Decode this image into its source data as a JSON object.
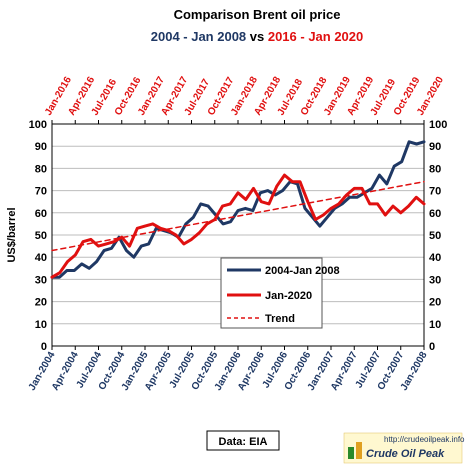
{
  "chart_data": {
    "type": "line",
    "title": "Comparison  Brent oil price",
    "subtitle_part1": "2004 - Jan 2008",
    "subtitle_part2": " vs ",
    "subtitle_part3": "2016 - Jan 2020",
    "ylabel": "US$/barrel",
    "ylim": [
      0,
      100
    ],
    "yticks": [
      0,
      10,
      20,
      30,
      40,
      50,
      60,
      70,
      80,
      90,
      100
    ],
    "grid": true,
    "x_bottom_ticks": [
      "Jan-2004",
      "Apr-2004",
      "Jul-2004",
      "Oct-2004",
      "Jan-2005",
      "Apr-2005",
      "Jul-2005",
      "Oct-2005",
      "Jan-2006",
      "Apr-2006",
      "Jul-2006",
      "Oct-2006",
      "Jan-2007",
      "Apr-2007",
      "Jul-2007",
      "Oct-2007",
      "Jan-2008"
    ],
    "x_top_ticks": [
      "Jan-2016",
      "Apr-2016",
      "Jul-2016",
      "Oct-2016",
      "Jan-2017",
      "Apr-2017",
      "Jul-2017",
      "Oct-2017",
      "Jan-2018",
      "Apr-2018",
      "Jul-2018",
      "Oct-2018",
      "Jan-2019",
      "Apr-2019",
      "Jul-2019",
      "Oct-2019",
      "Jan-2020"
    ],
    "legend_position": "lower-center",
    "series": [
      {
        "name": "2004-Jan 2008",
        "color": "#1f3864",
        "values": [
          31,
          31,
          34,
          34,
          37,
          35,
          38,
          43,
          44,
          49,
          43,
          40,
          45,
          46,
          53,
          52,
          51,
          49,
          55,
          58,
          64,
          63,
          59,
          55,
          56,
          61,
          62,
          61,
          69,
          70,
          68,
          70,
          74,
          73,
          62,
          58,
          54,
          58,
          62,
          64,
          67,
          67,
          69,
          71,
          77,
          73,
          81,
          83,
          92,
          91,
          92
        ]
      },
      {
        "name": "Jan-2020",
        "color": "#e01010",
        "values": [
          31,
          33,
          38,
          41,
          47,
          48,
          45,
          46,
          47,
          49,
          45,
          53,
          54,
          55,
          53,
          52,
          50,
          46,
          48,
          51,
          55,
          57,
          63,
          64,
          69,
          66,
          71,
          65,
          64,
          72,
          77,
          74,
          74,
          65,
          57,
          59,
          62,
          64,
          68,
          71,
          71,
          64,
          64,
          59,
          63,
          60,
          63,
          67,
          64
        ]
      },
      {
        "name": "Trend",
        "color": "#e01010",
        "style": "dashed",
        "values": [
          43,
          74
        ]
      }
    ]
  },
  "source_label": "Data: EIA",
  "logo": {
    "url": "http://crudeoilpeak.info",
    "name": "Crude Oil Peak"
  }
}
